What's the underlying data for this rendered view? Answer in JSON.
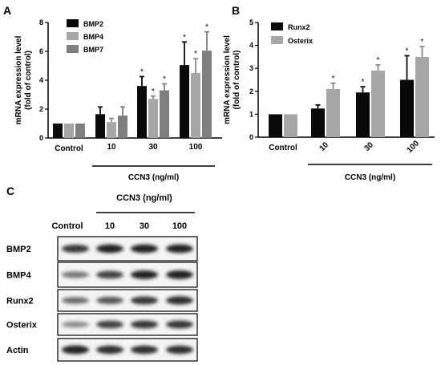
{
  "panels": [
    {
      "letter": "A"
    },
    {
      "letter": "B"
    },
    {
      "letter": "C"
    }
  ],
  "colors": {
    "black": "#0a0a0a",
    "light_gray": "#a6a6a6",
    "mid_gray": "#7f7f7f"
  },
  "chart_data": [
    {
      "type": "bar",
      "panel": "A",
      "ylabel_lines": [
        "mRNA expression level",
        "(fold of control)"
      ],
      "ylim": [
        0,
        8
      ],
      "yticks": [
        0,
        2,
        4,
        6,
        8
      ],
      "categories": [
        "Control",
        "10",
        "30",
        "100"
      ],
      "xgroup_label": "CCN3 (ng/ml)",
      "legend": "top-left",
      "series": [
        {
          "name": "BMP2",
          "color": "#0a0a0a",
          "values": [
            1.0,
            1.65,
            3.6,
            5.05
          ],
          "errors": [
            0,
            0.5,
            0.65,
            1.6
          ],
          "significant": [
            false,
            false,
            true,
            true
          ]
        },
        {
          "name": "BMP4",
          "color": "#a6a6a6",
          "values": [
            1.0,
            1.1,
            2.7,
            4.5
          ],
          "errors": [
            0,
            0.25,
            0.2,
            1.0
          ],
          "significant": [
            false,
            false,
            true,
            true
          ]
        },
        {
          "name": "BMP7",
          "color": "#7f7f7f",
          "values": [
            1.0,
            1.55,
            3.3,
            6.05
          ],
          "errors": [
            0,
            0.6,
            0.45,
            1.3
          ],
          "significant": [
            false,
            false,
            true,
            true
          ]
        }
      ]
    },
    {
      "type": "bar",
      "panel": "B",
      "ylabel_lines": [
        "mRNA expression level",
        "(fold of control)"
      ],
      "ylim": [
        0,
        5
      ],
      "yticks": [
        0,
        1,
        2,
        3,
        4,
        5
      ],
      "categories": [
        "Control",
        "10",
        "30",
        "100"
      ],
      "xgroup_label": "CCN3 (ng/ml)",
      "legend": "top-left",
      "series": [
        {
          "name": "Runx2",
          "color": "#0a0a0a",
          "values": [
            1.0,
            1.25,
            1.95,
            2.5
          ],
          "errors": [
            0,
            0.15,
            0.25,
            1.05
          ],
          "significant": [
            false,
            false,
            true,
            true
          ]
        },
        {
          "name": "Osterix",
          "color": "#a6a6a6",
          "values": [
            1.0,
            2.1,
            2.9,
            3.5
          ],
          "errors": [
            0,
            0.25,
            0.25,
            0.45
          ],
          "significant": [
            false,
            true,
            true,
            true
          ]
        }
      ]
    }
  ],
  "blot": {
    "treatment_label": "CCN3 (ng/ml)",
    "lanes": [
      "Control",
      "10",
      "30",
      "100"
    ],
    "rows": [
      {
        "label": "BMP2",
        "intensities": [
          0.85,
          0.95,
          0.95,
          0.95
        ]
      },
      {
        "label": "BMP4",
        "intensities": [
          0.55,
          0.8,
          0.95,
          0.95
        ]
      },
      {
        "label": "Runx2",
        "intensities": [
          0.6,
          0.7,
          0.85,
          0.9
        ]
      },
      {
        "label": "Osterix",
        "intensities": [
          0.45,
          0.8,
          0.85,
          0.85
        ]
      },
      {
        "label": "Actin",
        "intensities": [
          0.95,
          0.9,
          0.9,
          0.9
        ]
      }
    ]
  }
}
